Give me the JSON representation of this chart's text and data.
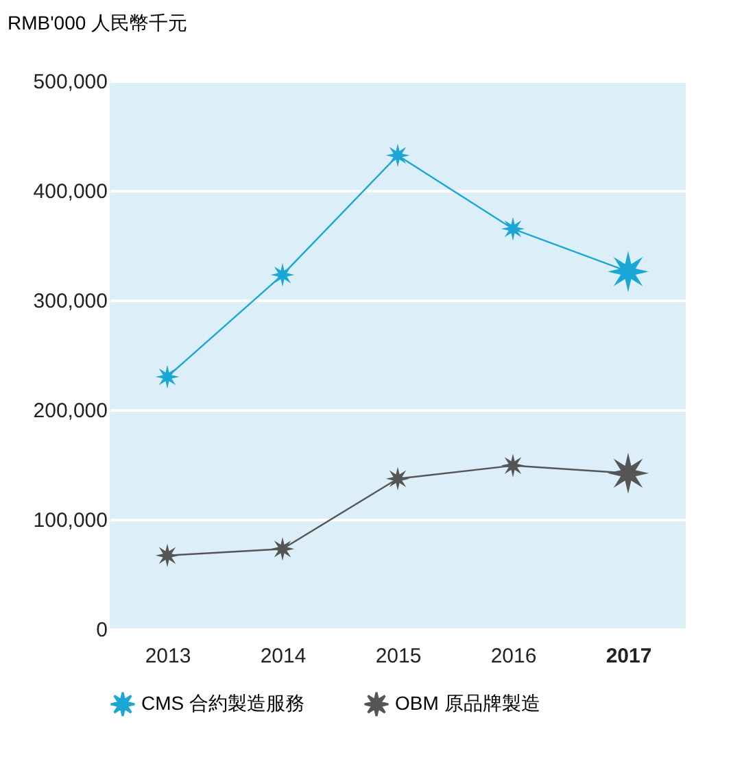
{
  "chart_data": {
    "type": "line",
    "ylabel": "RMB'000 人民幣千元",
    "categories": [
      "2013",
      "2014",
      "2015",
      "2016",
      "2017"
    ],
    "series": [
      {
        "name": "CMS 合約製造服務",
        "color": "#1aa7d6",
        "values": [
          230000,
          323000,
          432000,
          365000,
          326000
        ]
      },
      {
        "name": "OBM 原品牌製造",
        "color": "#555555",
        "values": [
          67000,
          73000,
          137000,
          149000,
          142000
        ]
      }
    ],
    "ylim": [
      0,
      500000
    ],
    "yticks": [
      0,
      {
        "value": 100000,
        "label": "100,000"
      },
      {
        "value": 200000,
        "label": "200,000"
      },
      {
        "value": 300000,
        "label": "300,000"
      },
      {
        "value": 400000,
        "label": "400,000"
      },
      {
        "value": 500000,
        "label": "500,000"
      }
    ],
    "grid": "y",
    "legend": "bottom",
    "marker": "star",
    "line_style": "solid"
  }
}
